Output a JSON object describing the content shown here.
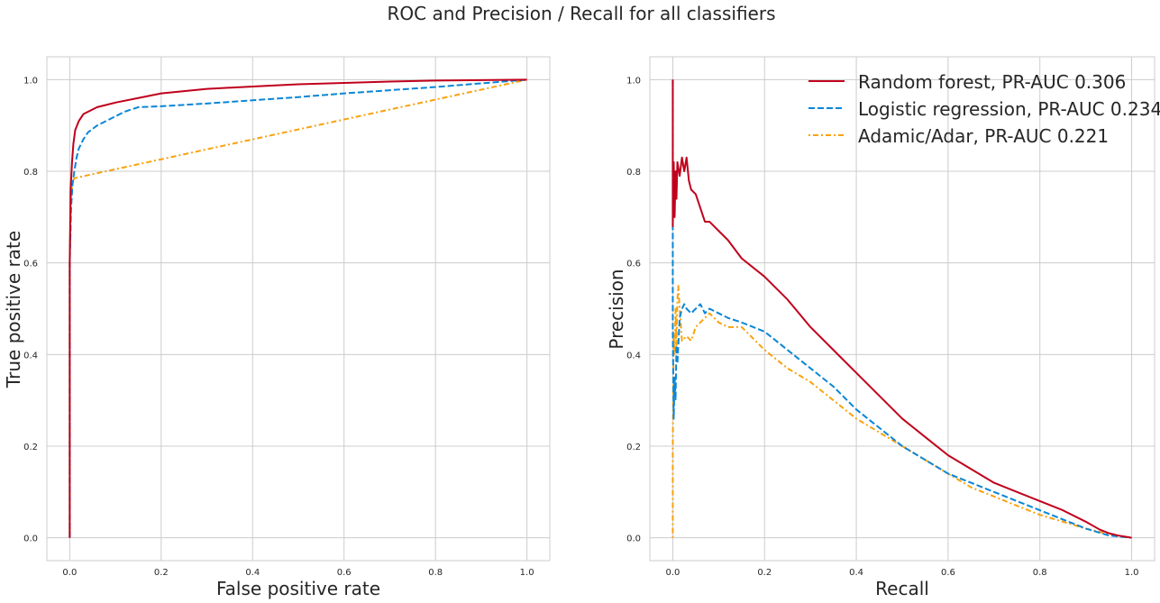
{
  "figure_title": "ROC and Precision / Recall for all classifiers",
  "colors": {
    "random_forest": "#c0001c",
    "logistic_regression": "#0a86d6",
    "adamic_adar": "#f8a20e",
    "grid": "#cccccc",
    "frame": "#cccccc"
  },
  "chart_data": [
    {
      "type": "line",
      "title": "",
      "xlabel": "False positive rate",
      "ylabel": "True positive rate",
      "xlim": [
        -0.05,
        1.05
      ],
      "ylim": [
        -0.05,
        1.05
      ],
      "xticks": [
        "0.0",
        "0.2",
        "0.4",
        "0.6",
        "0.8",
        "1.0"
      ],
      "yticks": [
        "0.0",
        "0.2",
        "0.4",
        "0.6",
        "0.8",
        "1.0"
      ],
      "grid": true,
      "legend": false,
      "series": [
        {
          "key": "random_forest",
          "style": "solid",
          "x": [
            0,
            0.0,
            0.002,
            0.005,
            0.008,
            0.012,
            0.02,
            0.03,
            0.04,
            0.06,
            0.08,
            0.1,
            0.15,
            0.2,
            0.3,
            0.4,
            0.5,
            0.6,
            0.7,
            0.8,
            0.9,
            1.0
          ],
          "y": [
            0,
            0.6,
            0.76,
            0.82,
            0.86,
            0.89,
            0.91,
            0.925,
            0.93,
            0.94,
            0.945,
            0.95,
            0.96,
            0.97,
            0.98,
            0.985,
            0.99,
            0.993,
            0.996,
            0.998,
            0.999,
            1.0
          ]
        },
        {
          "key": "logistic_regression",
          "style": "dashed",
          "x": [
            0,
            0.0,
            0.003,
            0.006,
            0.01,
            0.015,
            0.02,
            0.03,
            0.04,
            0.06,
            0.08,
            0.1,
            0.12,
            0.15,
            0.2,
            0.3,
            0.4,
            0.5,
            0.6,
            0.7,
            0.8,
            0.9,
            1.0
          ],
          "y": [
            0,
            0.6,
            0.72,
            0.77,
            0.8,
            0.83,
            0.85,
            0.87,
            0.885,
            0.9,
            0.91,
            0.92,
            0.93,
            0.94,
            0.942,
            0.948,
            0.955,
            0.962,
            0.97,
            0.977,
            0.984,
            0.992,
            1.0
          ]
        },
        {
          "key": "adamic_adar",
          "style": "dotted",
          "x": [
            0,
            0.0,
            0.003,
            0.006,
            0.01,
            1.0
          ],
          "y": [
            0,
            0.6,
            0.74,
            0.775,
            0.785,
            1.0
          ]
        }
      ]
    },
    {
      "type": "line",
      "title": "",
      "xlabel": "Recall",
      "ylabel": "Precision",
      "xlim": [
        -0.05,
        1.05
      ],
      "ylim": [
        -0.05,
        1.05
      ],
      "xticks": [
        "0.0",
        "0.2",
        "0.4",
        "0.6",
        "0.8",
        "1.0"
      ],
      "yticks": [
        "0.0",
        "0.2",
        "0.4",
        "0.6",
        "0.8",
        "1.0"
      ],
      "grid": true,
      "legend": "upper right",
      "series": [
        {
          "key": "random_forest",
          "name": "Random forest, PR-AUC 0.306",
          "style": "solid",
          "x": [
            0,
            0.0,
            0.002,
            0.004,
            0.006,
            0.008,
            0.01,
            0.015,
            0.02,
            0.025,
            0.03,
            0.035,
            0.04,
            0.05,
            0.06,
            0.07,
            0.08,
            0.1,
            0.12,
            0.15,
            0.2,
            0.25,
            0.3,
            0.35,
            0.4,
            0.45,
            0.5,
            0.55,
            0.6,
            0.65,
            0.7,
            0.75,
            0.8,
            0.85,
            0.9,
            0.93,
            0.95,
            0.97,
            1.0
          ],
          "y": [
            1.0,
            0.68,
            0.82,
            0.7,
            0.8,
            0.74,
            0.82,
            0.79,
            0.83,
            0.8,
            0.83,
            0.78,
            0.76,
            0.75,
            0.72,
            0.69,
            0.69,
            0.67,
            0.65,
            0.61,
            0.57,
            0.52,
            0.46,
            0.41,
            0.36,
            0.31,
            0.26,
            0.22,
            0.18,
            0.15,
            0.12,
            0.1,
            0.08,
            0.06,
            0.035,
            0.018,
            0.01,
            0.005,
            0.0
          ]
        },
        {
          "key": "logistic_regression",
          "name": "Logistic regression, PR-AUC 0.234",
          "style": "dashed",
          "x": [
            0,
            0.0,
            0.002,
            0.004,
            0.006,
            0.008,
            0.01,
            0.015,
            0.02,
            0.025,
            0.03,
            0.04,
            0.05,
            0.06,
            0.07,
            0.08,
            0.1,
            0.12,
            0.15,
            0.2,
            0.25,
            0.3,
            0.35,
            0.4,
            0.45,
            0.5,
            0.55,
            0.6,
            0.65,
            0.7,
            0.75,
            0.8,
            0.85,
            0.9,
            0.95,
            1.0
          ],
          "y": [
            1.0,
            0.45,
            0.26,
            0.35,
            0.3,
            0.42,
            0.38,
            0.48,
            0.5,
            0.51,
            0.5,
            0.49,
            0.5,
            0.51,
            0.49,
            0.5,
            0.49,
            0.48,
            0.47,
            0.45,
            0.41,
            0.37,
            0.33,
            0.28,
            0.24,
            0.2,
            0.17,
            0.14,
            0.12,
            0.1,
            0.08,
            0.06,
            0.04,
            0.02,
            0.005,
            0.0
          ]
        },
        {
          "key": "adamic_adar",
          "name": "Adamic/Adar, PR-AUC 0.221",
          "style": "dotted",
          "x": [
            0,
            0.0,
            0.002,
            0.004,
            0.006,
            0.008,
            0.01,
            0.012,
            0.015,
            0.02,
            0.03,
            0.04,
            0.05,
            0.07,
            0.08,
            0.1,
            0.12,
            0.15,
            0.18,
            0.2,
            0.25,
            0.3,
            0.35,
            0.4,
            0.45,
            0.5,
            0.55,
            0.6,
            0.65,
            0.7,
            0.75,
            0.8,
            0.85,
            0.9,
            0.95,
            1.0
          ],
          "y": [
            0.0,
            0.2,
            0.45,
            0.4,
            0.5,
            0.42,
            0.52,
            0.55,
            0.5,
            0.43,
            0.44,
            0.43,
            0.46,
            0.48,
            0.49,
            0.47,
            0.46,
            0.46,
            0.43,
            0.41,
            0.37,
            0.34,
            0.3,
            0.26,
            0.23,
            0.2,
            0.17,
            0.14,
            0.11,
            0.09,
            0.07,
            0.05,
            0.035,
            0.02,
            0.008,
            0.0
          ]
        }
      ]
    }
  ]
}
